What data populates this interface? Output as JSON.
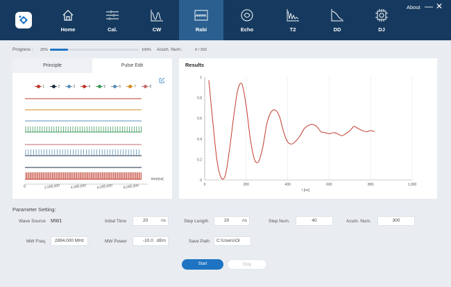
{
  "nav": {
    "items": [
      {
        "label": "Home",
        "icon": "home-icon"
      },
      {
        "label": "Cal.",
        "icon": "calibration-icon"
      },
      {
        "label": "CW",
        "icon": "cw-icon"
      },
      {
        "label": "Rabi",
        "icon": "rabi-icon",
        "active": true
      },
      {
        "label": "Echo",
        "icon": "echo-icon"
      },
      {
        "label": "T2",
        "icon": "t2-icon"
      },
      {
        "label": "DD",
        "icon": "dd-icon"
      },
      {
        "label": "DJ",
        "icon": "dj-icon"
      }
    ],
    "about": "About",
    "minimize": "—",
    "close": "✕"
  },
  "progress": {
    "label": "Progress :",
    "start": "20%",
    "end": "100%",
    "fraction": 0.2,
    "acum_label": "Acum. Num.:",
    "acum_value": "0 / 300"
  },
  "left_panel": {
    "tabs": [
      "Principle",
      "Pulse Edit"
    ],
    "active_tab": 1,
    "legend": [
      "1",
      "2",
      "3",
      "4",
      "5",
      "6",
      "7",
      "8"
    ],
    "legend_colors": [
      "#c0392b",
      "#1a2a40",
      "#5b8fb9",
      "#c0392b",
      "#3a9a5a",
      "#5b8fb9",
      "#d68a1e",
      "#c76a6a"
    ],
    "time_axis": {
      "unit": "time[ns]",
      "ticks": [
        "0",
        "2,000,000",
        "4,000,000",
        "6,000,000",
        "8,000,000"
      ]
    }
  },
  "results": {
    "title": "Results",
    "chart_data": {
      "type": "line",
      "xlabel": "t [ns]",
      "ylabel": "",
      "xlim": [
        0,
        1000
      ],
      "ylim": [
        0,
        1
      ],
      "xticks": [
        "0",
        "200",
        "400",
        "600",
        "800",
        "1,000"
      ],
      "yticks": [
        "0",
        "0.2",
        "0.4",
        "0.6",
        "0.8",
        "1"
      ],
      "grid": true,
      "series": [
        {
          "color": "#c0392b",
          "x": [
            20,
            40,
            60,
            80,
            100,
            120,
            140,
            160,
            180,
            200,
            220,
            240,
            260,
            280,
            300,
            320,
            340,
            360,
            380,
            400,
            420,
            440,
            460,
            480,
            500,
            520,
            540,
            560,
            580,
            600,
            620,
            640,
            660,
            680,
            700,
            720,
            740,
            760,
            780,
            800,
            820
          ],
          "y": [
            0.97,
            0.55,
            0.18,
            0.02,
            0.05,
            0.3,
            0.62,
            0.88,
            0.93,
            0.72,
            0.4,
            0.2,
            0.18,
            0.32,
            0.55,
            0.66,
            0.68,
            0.62,
            0.47,
            0.37,
            0.35,
            0.38,
            0.43,
            0.5,
            0.53,
            0.54,
            0.52,
            0.47,
            0.46,
            0.45,
            0.46,
            0.45,
            0.43,
            0.45,
            0.48,
            0.52,
            0.5,
            0.48,
            0.47,
            0.48,
            0.47
          ]
        }
      ]
    }
  },
  "params": {
    "section_title": "Parameter Setting:",
    "wave_source": {
      "label": "Wave Source",
      "value": "MW1"
    },
    "initial_time": {
      "label": "Initial Time",
      "value": "20",
      "unit": "ns"
    },
    "step_length": {
      "label": "Step Length",
      "value": "20",
      "unit": "ns"
    },
    "step_num": {
      "label": "Step Num.",
      "value": "40"
    },
    "acum_num": {
      "label": "Acum. Num.",
      "value": "300"
    },
    "mw_freq": {
      "label": "MW Freq.",
      "value": "2894.000 MHz"
    },
    "mw_power": {
      "label": "MW Power",
      "value": "-10.0",
      "unit": "dBm"
    },
    "save_path": {
      "label": "Save Path",
      "value": "C:\\Users\\Ol"
    }
  },
  "buttons": {
    "start": "Start",
    "stop": "Stop"
  }
}
